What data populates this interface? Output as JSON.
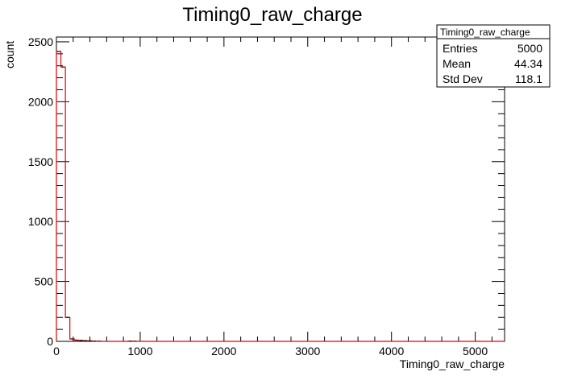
{
  "chart_data": {
    "type": "bar",
    "title": "Timing0_raw_charge",
    "xlabel": "Timing0_raw_charge",
    "ylabel": "count",
    "xlim": [
      0,
      5350
    ],
    "ylim": [
      0,
      2540
    ],
    "x_ticks": [
      0,
      1000,
      2000,
      3000,
      4000,
      5000
    ],
    "x_tick_labels": [
      "0",
      "1000",
      "2000",
      "3000",
      "4000",
      "5000"
    ],
    "y_ticks": [
      0,
      500,
      1000,
      1500,
      2000,
      2500
    ],
    "y_tick_labels": [
      "0",
      "500",
      "1000",
      "1500",
      "2000",
      "2500"
    ],
    "bin_width": 53.5,
    "bins": [
      {
        "x0": 0,
        "x1": 53.5,
        "count": 2420
      },
      {
        "x0": 53.5,
        "x1": 107,
        "count": 2290
      },
      {
        "x0": 107,
        "x1": 160.5,
        "count": 200
      },
      {
        "x0": 160.5,
        "x1": 214,
        "count": 20
      },
      {
        "x0": 214,
        "x1": 267.5,
        "count": 10
      },
      {
        "x0": 267.5,
        "x1": 321,
        "count": 8
      },
      {
        "x0": 321,
        "x1": 374.5,
        "count": 6
      },
      {
        "x0": 374.5,
        "x1": 428,
        "count": 4
      },
      {
        "x0": 428,
        "x1": 481.5,
        "count": 2
      },
      {
        "x0": 481.5,
        "x1": 535,
        "count": 1
      },
      {
        "x0": 856,
        "x1": 909.5,
        "count": 2
      },
      {
        "x0": 909.5,
        "x1": 963,
        "count": 1
      }
    ],
    "stats": {
      "title": "Timing0_raw_charge",
      "rows": [
        {
          "label": "Entries",
          "value": "5000"
        },
        {
          "label": "Mean",
          "value": "44.34"
        },
        {
          "label": "Std Dev",
          "value": "118.1"
        }
      ]
    },
    "colors": {
      "line": "#e0000a",
      "frame": "#000000"
    }
  }
}
